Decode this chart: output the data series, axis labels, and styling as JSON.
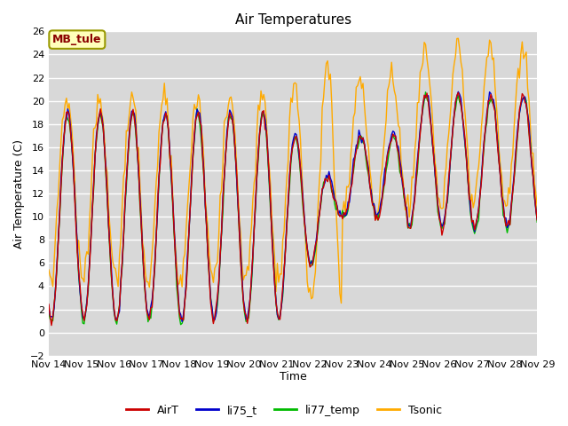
{
  "title": "Air Temperatures",
  "ylabel": "Air Temperature (C)",
  "xlabel": "Time",
  "site_label": "MB_tule",
  "ylim": [
    -2,
    26
  ],
  "yticks": [
    -2,
    0,
    2,
    4,
    6,
    8,
    10,
    12,
    14,
    16,
    18,
    20,
    22,
    24,
    26
  ],
  "xtick_labels": [
    "Nov 14",
    "Nov 15",
    "Nov 16",
    "Nov 17",
    "Nov 18",
    "Nov 19",
    "Nov 20",
    "Nov 21",
    "Nov 22",
    "Nov 23",
    "Nov 24",
    "Nov 25",
    "Nov 26",
    "Nov 27",
    "Nov 28",
    "Nov 29"
  ],
  "legend_entries": [
    "AirT",
    "li75_t",
    "li77_temp",
    "Tsonic"
  ],
  "line_colors": {
    "AirT": "#cc0000",
    "li75_t": "#0000cc",
    "li77_temp": "#00bb00",
    "Tsonic": "#ffaa00"
  },
  "fig_bg": "#ffffff",
  "plot_bg": "#d8d8d8",
  "grid_color": "#ffffff",
  "title_fontsize": 11,
  "axis_label_fontsize": 9,
  "tick_fontsize": 8,
  "legend_fontsize": 9
}
